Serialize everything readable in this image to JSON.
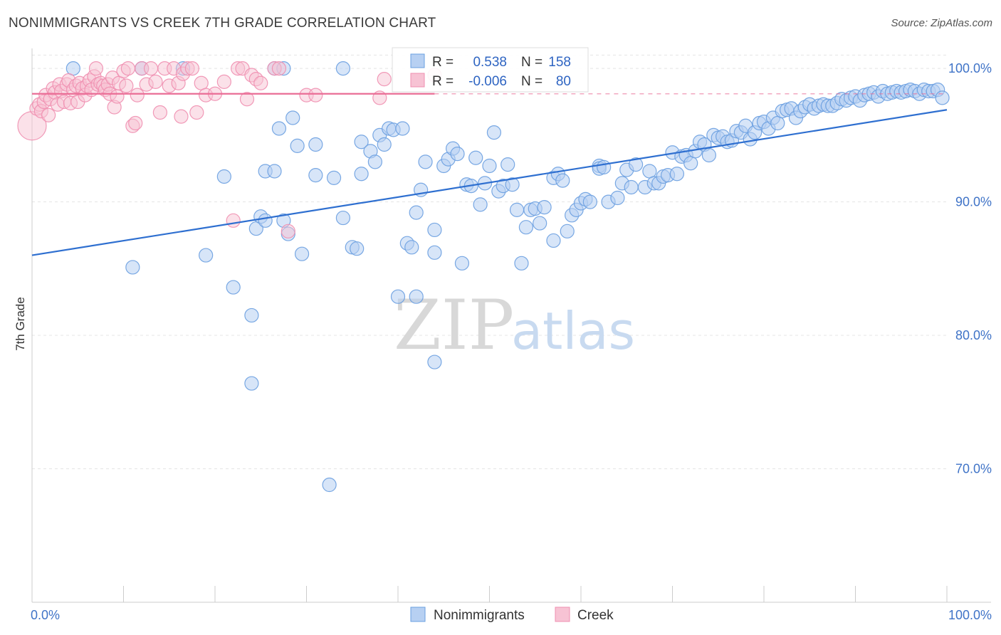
{
  "title": "NONIMMIGRANTS VS CREEK 7TH GRADE CORRELATION CHART",
  "source": "Source: ZipAtlas.com",
  "watermark": {
    "zip": "ZIP",
    "atlas": "atlas"
  },
  "chart_data": {
    "type": "scatter",
    "ylabel": "7th Grade",
    "xlim": [
      0,
      100
    ],
    "ylim": [
      60,
      101.5
    ],
    "x_tick_labels": [
      {
        "value": 0,
        "label": "0.0%"
      },
      {
        "value": 100,
        "label": "100.0%"
      }
    ],
    "y_ticks": [
      {
        "value": 100,
        "label": "100.0%"
      },
      {
        "value": 90,
        "label": "90.0%"
      },
      {
        "value": 80,
        "label": "80.0%"
      },
      {
        "value": 70,
        "label": "70.0%"
      }
    ],
    "grid": true,
    "legend_position": "bottom-center",
    "stats_box": [
      {
        "r_label": "R =",
        "r_value": "0.538",
        "n_label": "N =",
        "n_value": "158"
      },
      {
        "r_label": "R =",
        "r_value": "-0.006",
        "n_label": "N =",
        "n_value": "80"
      }
    ],
    "series": [
      {
        "name": "Nonimmigrants",
        "color": "#6a9fe0",
        "fill": "#b7d0f2",
        "trend": {
          "x": [
            0,
            100
          ],
          "y": [
            86.0,
            96.9
          ]
        },
        "points": [
          [
            4.5,
            100
          ],
          [
            16.5,
            100
          ],
          [
            26.5,
            100
          ],
          [
            27.5,
            100
          ],
          [
            34,
            100
          ],
          [
            12,
            100
          ],
          [
            11,
            85.1
          ],
          [
            19,
            86
          ],
          [
            21,
            91.9
          ],
          [
            22,
            83.6
          ],
          [
            24,
            76.4
          ],
          [
            24.5,
            88
          ],
          [
            24,
            81.5
          ],
          [
            25,
            88.9
          ],
          [
            25.5,
            88.6
          ],
          [
            25.5,
            92.3
          ],
          [
            26.5,
            92.3
          ],
          [
            27.5,
            88.6
          ],
          [
            27,
            95.5
          ],
          [
            28,
            87.6
          ],
          [
            28.5,
            96.3
          ],
          [
            29,
            94.2
          ],
          [
            29.5,
            86.1
          ],
          [
            31,
            94.3
          ],
          [
            31,
            92
          ],
          [
            32.5,
            68.8
          ],
          [
            33,
            91.8
          ],
          [
            34,
            88.8
          ],
          [
            35,
            86.6
          ],
          [
            35.5,
            86.5
          ],
          [
            36,
            92.1
          ],
          [
            36,
            94.5
          ],
          [
            37,
            93.8
          ],
          [
            37.5,
            93
          ],
          [
            38,
            95
          ],
          [
            38.5,
            94.3
          ],
          [
            39,
            95.5
          ],
          [
            39.5,
            95.4
          ],
          [
            40,
            82.9
          ],
          [
            40.5,
            95.5
          ],
          [
            41,
            86.9
          ],
          [
            41.5,
            86.6
          ],
          [
            42,
            89.2
          ],
          [
            42,
            82.9
          ],
          [
            42.5,
            90.9
          ],
          [
            43,
            93
          ],
          [
            44,
            87.9
          ],
          [
            44,
            86.2
          ],
          [
            44,
            78
          ],
          [
            45,
            92.7
          ],
          [
            45.5,
            93.2
          ],
          [
            46,
            94
          ],
          [
            46.5,
            93.6
          ],
          [
            47,
            85.4
          ],
          [
            47.5,
            91.3
          ],
          [
            48,
            91.2
          ],
          [
            48.5,
            93.3
          ],
          [
            49,
            89.8
          ],
          [
            49.5,
            91.4
          ],
          [
            50,
            92.7
          ],
          [
            50.5,
            95.2
          ],
          [
            51,
            90.8
          ],
          [
            51.5,
            91.2
          ],
          [
            52,
            92.8
          ],
          [
            52.5,
            91.3
          ],
          [
            53,
            89.4
          ],
          [
            53.5,
            85.4
          ],
          [
            54,
            88.1
          ],
          [
            54.5,
            89.4
          ],
          [
            55,
            89.5
          ],
          [
            55.5,
            88.4
          ],
          [
            56,
            89.6
          ],
          [
            57,
            87.1
          ],
          [
            57,
            91.8
          ],
          [
            57.5,
            92.1
          ],
          [
            58,
            91.6
          ],
          [
            58.5,
            87.8
          ],
          [
            59,
            89
          ],
          [
            59.5,
            89.4
          ],
          [
            60,
            89.9
          ],
          [
            60.5,
            90.2
          ],
          [
            61,
            90
          ],
          [
            62,
            92.7
          ],
          [
            62,
            92.5
          ],
          [
            62.5,
            92.6
          ],
          [
            63,
            90
          ],
          [
            64,
            90.3
          ],
          [
            64.5,
            91.4
          ],
          [
            65,
            92.4
          ],
          [
            65.5,
            91.1
          ],
          [
            66,
            92.8
          ],
          [
            67,
            91.1
          ],
          [
            67.5,
            92.3
          ],
          [
            68,
            91.4
          ],
          [
            68.5,
            91.4
          ],
          [
            69,
            91.9
          ],
          [
            69.5,
            92
          ],
          [
            70,
            93.7
          ],
          [
            70.5,
            92.1
          ],
          [
            71,
            93.4
          ],
          [
            71.5,
            93.5
          ],
          [
            72,
            92.9
          ],
          [
            72.5,
            93.8
          ],
          [
            73,
            94.5
          ],
          [
            73.5,
            94.3
          ],
          [
            74,
            93.5
          ],
          [
            74.5,
            95
          ],
          [
            75,
            94.8
          ],
          [
            75.5,
            94.9
          ],
          [
            76,
            94.5
          ],
          [
            76.5,
            94.6
          ],
          [
            77,
            95.3
          ],
          [
            77.5,
            95.2
          ],
          [
            78,
            95.7
          ],
          [
            78.5,
            94.7
          ],
          [
            79,
            95.2
          ],
          [
            79.5,
            95.9
          ],
          [
            80,
            96
          ],
          [
            80.5,
            95.5
          ],
          [
            81,
            96.3
          ],
          [
            81.5,
            95.9
          ],
          [
            82,
            96.8
          ],
          [
            82.5,
            96.9
          ],
          [
            83,
            97
          ],
          [
            83.5,
            96.3
          ],
          [
            84,
            96.8
          ],
          [
            84.5,
            97.1
          ],
          [
            85,
            97.3
          ],
          [
            85.5,
            97
          ],
          [
            86,
            97.2
          ],
          [
            86.5,
            97.3
          ],
          [
            87,
            97.2
          ],
          [
            87.5,
            97.2
          ],
          [
            88,
            97.4
          ],
          [
            88.5,
            97.7
          ],
          [
            89,
            97.6
          ],
          [
            89.5,
            97.8
          ],
          [
            90,
            97.9
          ],
          [
            90.5,
            97.6
          ],
          [
            91,
            98
          ],
          [
            91.5,
            98.1
          ],
          [
            92,
            98.2
          ],
          [
            92.5,
            97.9
          ],
          [
            93,
            98.3
          ],
          [
            93.5,
            98.1
          ],
          [
            94,
            98.2
          ],
          [
            94.5,
            98.3
          ],
          [
            95,
            98.2
          ],
          [
            95.5,
            98.3
          ],
          [
            96,
            98.4
          ],
          [
            96.5,
            98.3
          ],
          [
            97,
            98.1
          ],
          [
            97.5,
            98.4
          ],
          [
            98,
            98.3
          ],
          [
            98.5,
            98.3
          ],
          [
            99,
            98.4
          ],
          [
            99.5,
            97.8
          ]
        ]
      },
      {
        "name": "Creek",
        "color": "#ef8fb0",
        "fill": "#f7c3d4",
        "trend": {
          "x": [
            0,
            44
          ],
          "y": [
            98.1,
            98.1
          ]
        },
        "trend_dashed": {
          "x": [
            44,
            100
          ],
          "y": [
            98.1,
            98.1
          ]
        },
        "points": [
          [
            0,
            95.7
          ],
          [
            0.5,
            97
          ],
          [
            0.8,
            97.3
          ],
          [
            1,
            96.8
          ],
          [
            1.3,
            97.5
          ],
          [
            1.5,
            98
          ],
          [
            1.8,
            96.5
          ],
          [
            2,
            97.7
          ],
          [
            2.3,
            98.5
          ],
          [
            2.5,
            98.2
          ],
          [
            2.8,
            97.3
          ],
          [
            3,
            98.8
          ],
          [
            3.2,
            98.3
          ],
          [
            3.5,
            97.5
          ],
          [
            3.8,
            98.8
          ],
          [
            4,
            99.1
          ],
          [
            4.2,
            97.4
          ],
          [
            4.5,
            98.4
          ],
          [
            4.8,
            98.7
          ],
          [
            5,
            97.5
          ],
          [
            5.2,
            98.9
          ],
          [
            5.5,
            98.5
          ],
          [
            5.8,
            98
          ],
          [
            6,
            98.7
          ],
          [
            6.3,
            99.1
          ],
          [
            6.5,
            98.4
          ],
          [
            6.8,
            99.4
          ],
          [
            7,
            100
          ],
          [
            7.2,
            98.8
          ],
          [
            7.5,
            98.9
          ],
          [
            7.8,
            98.7
          ],
          [
            8,
            98.4
          ],
          [
            8.3,
            98.8
          ],
          [
            8.5,
            98.1
          ],
          [
            8.8,
            99.3
          ],
          [
            9,
            97.1
          ],
          [
            9.3,
            97.9
          ],
          [
            9.5,
            98.9
          ],
          [
            10,
            99.8
          ],
          [
            10.3,
            98.7
          ],
          [
            10.5,
            100
          ],
          [
            11,
            95.7
          ],
          [
            11.3,
            95.9
          ],
          [
            11.5,
            98
          ],
          [
            12,
            100
          ],
          [
            12.5,
            98.8
          ],
          [
            13,
            100
          ],
          [
            13.5,
            99
          ],
          [
            14,
            96.7
          ],
          [
            14.5,
            100
          ],
          [
            15,
            98.7
          ],
          [
            15.5,
            100
          ],
          [
            16,
            98.9
          ],
          [
            16.3,
            96.4
          ],
          [
            16.5,
            99.6
          ],
          [
            17,
            100
          ],
          [
            17.5,
            100
          ],
          [
            18,
            96.7
          ],
          [
            18.5,
            98.9
          ],
          [
            19,
            98
          ],
          [
            20,
            98.1
          ],
          [
            21,
            99
          ],
          [
            22,
            88.6
          ],
          [
            22.5,
            100
          ],
          [
            23,
            100
          ],
          [
            23.5,
            97.7
          ],
          [
            24,
            99.5
          ],
          [
            24.5,
            99.2
          ],
          [
            25,
            98.9
          ],
          [
            26.5,
            100
          ],
          [
            27,
            100
          ],
          [
            28,
            87.8
          ],
          [
            30,
            98
          ],
          [
            31,
            98
          ],
          [
            38,
            97.8
          ],
          [
            38.5,
            99.2
          ],
          [
            44,
            99.5
          ]
        ]
      }
    ]
  }
}
